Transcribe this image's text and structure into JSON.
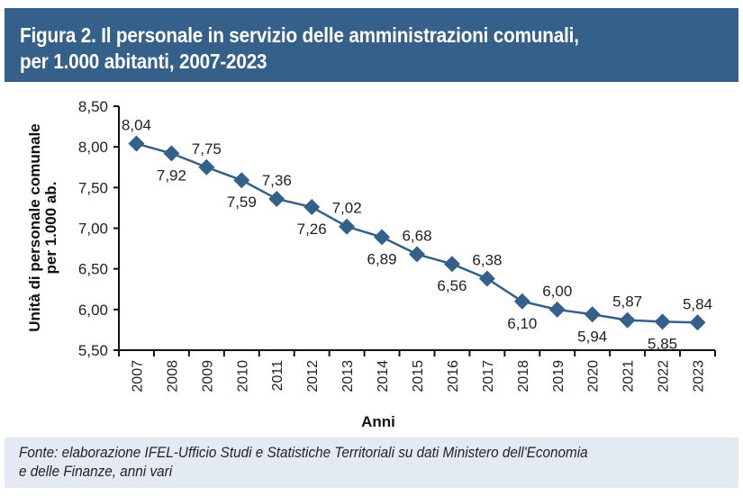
{
  "header": {
    "title_line1": "Figura 2.  Il personale in servizio delle amministrazioni comunali,",
    "title_line2": "per 1.000 abitanti, 2007-2023"
  },
  "footer": {
    "source_line1": "Fonte: elaborazione IFEL-Ufficio Studi e Statistiche Territoriali su dati Ministero dell'Economia",
    "source_line2": "e delle Finanze, anni vari"
  },
  "colors": {
    "header_bg": "#356089",
    "series": "#356089",
    "footer_bg": "#e3eaf3"
  },
  "chart_data": {
    "type": "line",
    "title": "Il personale in servizio delle amministrazioni comunali, per 1.000 abitanti, 2007-2023",
    "xlabel": "Anni",
    "ylabel_line1": "Unità di personale comunale",
    "ylabel_line2": "per 1.000 ab.",
    "ylim": [
      5.5,
      8.5
    ],
    "yticks": [
      5.5,
      6.0,
      6.5,
      7.0,
      7.5,
      8.0,
      8.5
    ],
    "ytick_labels": [
      "5,50",
      "6,00",
      "6,50",
      "7,00",
      "7,50",
      "8,00",
      "8,50"
    ],
    "categories": [
      "2007",
      "2008",
      "2009",
      "2010",
      "2011",
      "2012",
      "2013",
      "2014",
      "2015",
      "2016",
      "2017",
      "2018",
      "2019",
      "2020",
      "2021",
      "2022",
      "2023"
    ],
    "series": [
      {
        "name": "Unità di personale comunale per 1.000 ab.",
        "values": [
          8.04,
          7.92,
          7.75,
          7.59,
          7.36,
          7.26,
          7.02,
          6.89,
          6.68,
          6.56,
          6.38,
          6.1,
          6.0,
          5.94,
          5.87,
          5.85,
          5.84
        ],
        "labels": [
          "8,04",
          "7,92",
          "7,75",
          "7,59",
          "7,36",
          "7,26",
          "7,02",
          "6,89",
          "6,68",
          "6,56",
          "6,38",
          "6,10",
          "6,00",
          "5,94",
          "5,87",
          "5,85",
          "5,84"
        ],
        "label_positions": [
          "above",
          "below",
          "above",
          "below",
          "above",
          "below",
          "above",
          "below",
          "above",
          "below",
          "above",
          "below",
          "above",
          "below",
          "above",
          "below",
          "above"
        ],
        "marker": "diamond"
      }
    ],
    "grid": false,
    "legend": "none"
  }
}
